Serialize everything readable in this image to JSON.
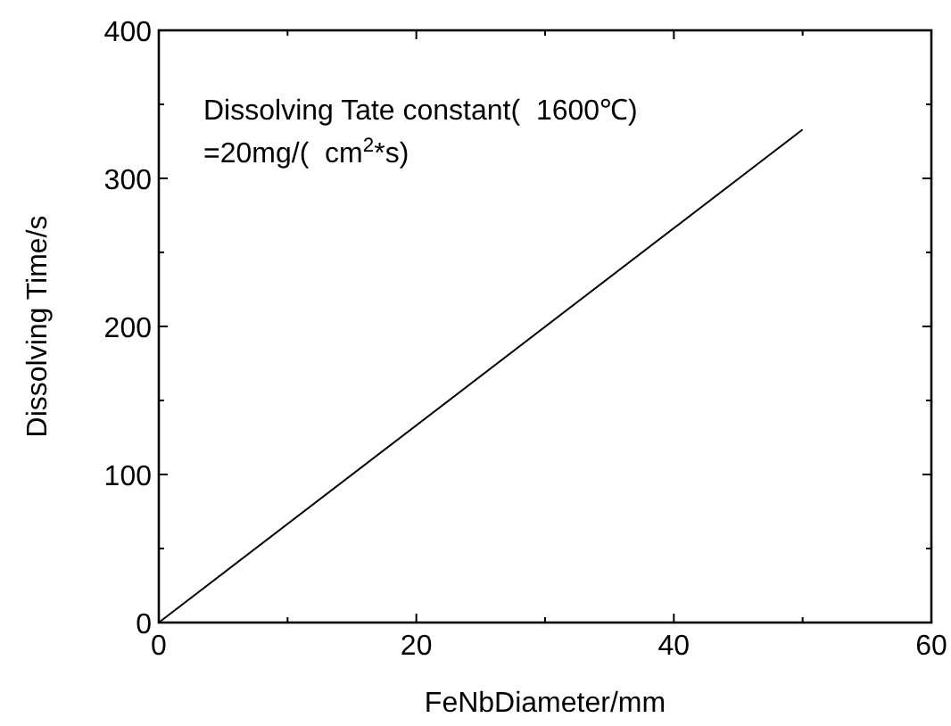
{
  "chart_data": {
    "type": "line",
    "xlabel": "FeNbDiameter/mm",
    "ylabel": "Dissolving Time/s",
    "x": [
      0,
      50
    ],
    "values": [
      0,
      333
    ],
    "color": "#000000",
    "xlim": [
      0,
      60
    ],
    "ylim": [
      0,
      400
    ],
    "xticks": [
      0,
      {
        "value": 10,
        "label": null
      },
      20,
      {
        "value": 30,
        "label": null
      },
      40,
      {
        "value": 50,
        "label": null
      },
      60
    ],
    "yticks": [
      0,
      {
        "value": 50,
        "label": null
      },
      100,
      {
        "value": 150,
        "label": null
      },
      200,
      {
        "value": 250,
        "label": null
      },
      300,
      {
        "value": 350,
        "label": null
      },
      400
    ],
    "annotations": [
      "Dissolving Tate constant(  1600℃)",
      "=20mg/(  cm$^{2}$*s)"
    ],
    "grid": false,
    "marker": "none",
    "line_style": "solid"
  }
}
